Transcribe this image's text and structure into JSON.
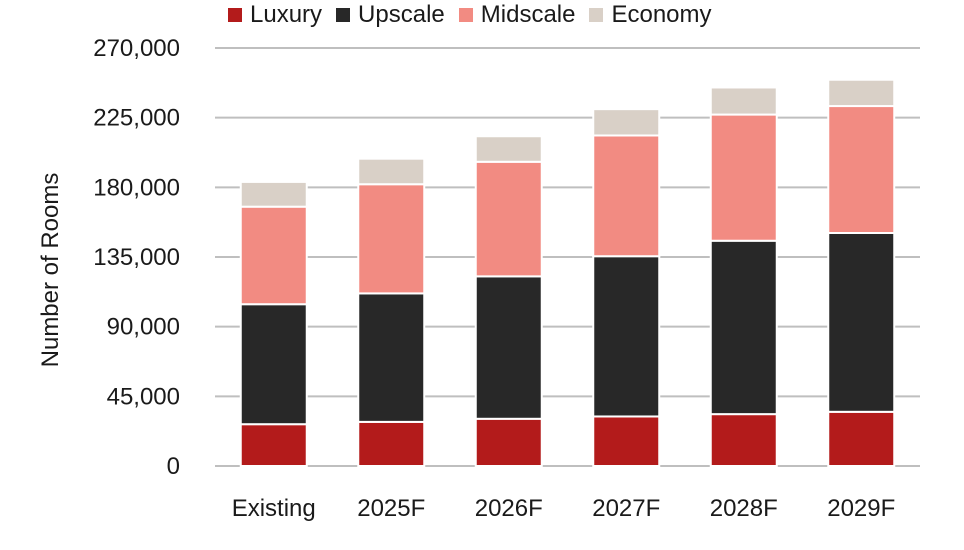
{
  "chart_data": {
    "type": "bar",
    "stacked": true,
    "categories": [
      "Existing",
      "2025F",
      "2026F",
      "2027F",
      "2028F",
      "2029F"
    ],
    "series": [
      {
        "name": "Luxury",
        "color": "#b31b1b",
        "values": [
          27000,
          28500,
          30500,
          32000,
          33500,
          35000
        ]
      },
      {
        "name": "Upscale",
        "color": "#282828",
        "values": [
          77500,
          83000,
          92000,
          103500,
          112000,
          115500
        ]
      },
      {
        "name": "Midscale",
        "color": "#f28b82",
        "values": [
          63000,
          70500,
          74000,
          78000,
          81500,
          82000
        ]
      },
      {
        "name": "Economy",
        "color": "#d9d0c7",
        "values": [
          16000,
          16500,
          16500,
          17000,
          17500,
          17000
        ]
      }
    ],
    "ylabel": "Number of Rooms",
    "ylim": [
      0,
      270000
    ],
    "yticks": [
      "0",
      "45,000",
      "90,000",
      "135,000",
      "180,000",
      "225,000",
      "270,000"
    ],
    "ytick_values": [
      0,
      45000,
      90000,
      135000,
      180000,
      225000,
      270000
    ],
    "grid": true,
    "legend_position": "top"
  }
}
